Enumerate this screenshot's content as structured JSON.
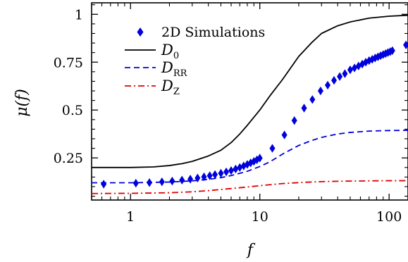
{
  "chart_data": {
    "type": "line",
    "xlabel": "f",
    "ylabel": "μ(f)",
    "xscale": "log",
    "xlim": [
      0.5,
      140
    ],
    "ylim": [
      0.03,
      1.06
    ],
    "xticks": [
      1,
      10,
      100
    ],
    "xtick_labels": [
      "1",
      "10",
      "100"
    ],
    "yticks": [
      0.25,
      0.5,
      0.75,
      1
    ],
    "ytick_labels": [
      "0.25",
      "0.5",
      "0.75",
      "1"
    ],
    "grid": false,
    "legend_position": "top-left",
    "series": [
      {
        "name": "2D Simulations",
        "kind": "scatter",
        "marker": "diamond",
        "color": "#0000dd",
        "x": [
          0.62,
          1.1,
          1.4,
          1.75,
          2.1,
          2.5,
          2.9,
          3.3,
          3.7,
          4.1,
          4.5,
          5.0,
          5.5,
          6.0,
          6.5,
          7.0,
          7.5,
          8.0,
          8.5,
          9.0,
          9.5,
          10.0,
          12.5,
          15.5,
          18.5,
          22.0,
          25.5,
          29.5,
          33.5,
          37.5,
          41.5,
          45.5,
          50.0,
          54.0,
          58.0,
          62.0,
          66.0,
          70.0,
          74.0,
          78.0,
          82.0,
          86.0,
          90.0,
          94.0,
          98.0,
          102.0,
          106.0,
          135.0
        ],
        "y": [
          0.113,
          0.118,
          0.121,
          0.125,
          0.129,
          0.134,
          0.139,
          0.145,
          0.151,
          0.157,
          0.163,
          0.17,
          0.177,
          0.184,
          0.192,
          0.2,
          0.208,
          0.216,
          0.224,
          0.232,
          0.24,
          0.249,
          0.3,
          0.37,
          0.445,
          0.51,
          0.555,
          0.6,
          0.63,
          0.655,
          0.675,
          0.69,
          0.71,
          0.72,
          0.73,
          0.74,
          0.75,
          0.758,
          0.765,
          0.772,
          0.778,
          0.784,
          0.79,
          0.795,
          0.8,
          0.805,
          0.81,
          0.84
        ]
      },
      {
        "name": "D0",
        "kind": "line",
        "dash": "solid",
        "color": "#000000",
        "x": [
          0.5,
          1,
          1.5,
          2,
          2.5,
          3,
          4,
          5,
          6,
          7,
          8,
          10,
          12,
          15,
          20,
          25,
          30,
          40,
          50,
          70,
          100,
          140
        ],
        "y": [
          0.2,
          0.2,
          0.203,
          0.21,
          0.22,
          0.232,
          0.26,
          0.29,
          0.33,
          0.375,
          0.42,
          0.5,
          0.575,
          0.66,
          0.78,
          0.85,
          0.9,
          0.94,
          0.96,
          0.98,
          0.99,
          0.995
        ]
      },
      {
        "name": "DRR",
        "kind": "line",
        "dash": "dashed",
        "color": "#0000dd",
        "x": [
          0.5,
          1,
          2,
          3,
          4,
          5,
          6,
          8,
          10,
          12,
          15,
          20,
          25,
          30,
          40,
          50,
          70,
          100,
          140
        ],
        "y": [
          0.12,
          0.12,
          0.124,
          0.13,
          0.138,
          0.147,
          0.158,
          0.18,
          0.205,
          0.23,
          0.27,
          0.315,
          0.34,
          0.357,
          0.375,
          0.383,
          0.39,
          0.393,
          0.394
        ]
      },
      {
        "name": "DZ",
        "kind": "line",
        "dash": "dashdot",
        "color": "#dd0000",
        "x": [
          0.5,
          1,
          2,
          3,
          4,
          5,
          6,
          8,
          10,
          12,
          15,
          20,
          25,
          30,
          40,
          50,
          70,
          100,
          140
        ],
        "y": [
          0.064,
          0.065,
          0.068,
          0.073,
          0.079,
          0.085,
          0.09,
          0.098,
          0.105,
          0.11,
          0.116,
          0.121,
          0.124,
          0.126,
          0.128,
          0.129,
          0.13,
          0.131,
          0.131
        ]
      }
    ],
    "legend": {
      "entries": [
        {
          "label": "2D Simulations"
        },
        {
          "main": "D",
          "sub": "0"
        },
        {
          "main": "D",
          "sub": "RR"
        },
        {
          "main": "D",
          "sub": "Z"
        }
      ]
    }
  }
}
